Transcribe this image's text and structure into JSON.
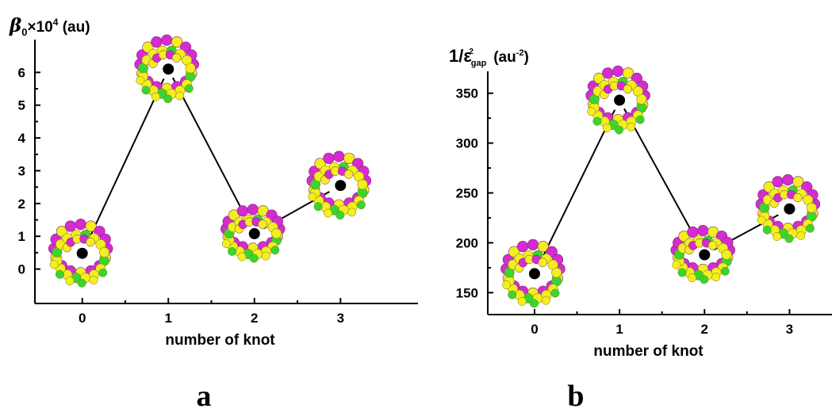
{
  "colors": {
    "magenta": "#d52bd0",
    "yellow": "#f4ee1e",
    "green": "#38d62e",
    "marker": "#000000"
  },
  "panels": [
    {
      "label": "a",
      "ylabel_sym": "β",
      "ylabel_sub": "0",
      "ylabel_mid": "×10",
      "ylabel_sup": "4",
      "ylabel_unit": " (au)"
    },
    {
      "label": "b",
      "ylabel_sym": "1/ε",
      "ylabel_sub": "gap",
      "ylabel_sup": "2",
      "ylabel_unit": " (au",
      "ylabel_unit_sup": "-2",
      "ylabel_tail": ")"
    }
  ],
  "chart_data": [
    {
      "type": "line",
      "title": "",
      "xlabel": "number of knot",
      "ylabel": "β0×10^4 (au)",
      "x": [
        0,
        1,
        2,
        3
      ],
      "x_ticks": [
        "0",
        "1",
        "2",
        "3"
      ],
      "y_ticks": [
        "0",
        "1",
        "2",
        "3",
        "4",
        "5",
        "6"
      ],
      "values": [
        0.48,
        6.1,
        1.08,
        2.55
      ],
      "xlim": [
        -0.55,
        3.9
      ],
      "ylim": [
        -1.05,
        7.0
      ],
      "marker_glyph": "knot-model",
      "grid": false,
      "panel_label": "a"
    },
    {
      "type": "line",
      "title": "",
      "xlabel": "number of knot",
      "ylabel": "1/ε²gap (au⁻²)",
      "x": [
        0,
        1,
        2,
        3
      ],
      "x_ticks": [
        "0",
        "1",
        "2",
        "3"
      ],
      "y_ticks": [
        "150",
        "200",
        "250",
        "300",
        "350"
      ],
      "values": [
        169,
        343,
        188,
        234
      ],
      "xlim": [
        -0.55,
        3.5
      ],
      "ylim": [
        128,
        372
      ],
      "marker_glyph": "knot-model",
      "grid": false,
      "panel_label": "b"
    }
  ]
}
